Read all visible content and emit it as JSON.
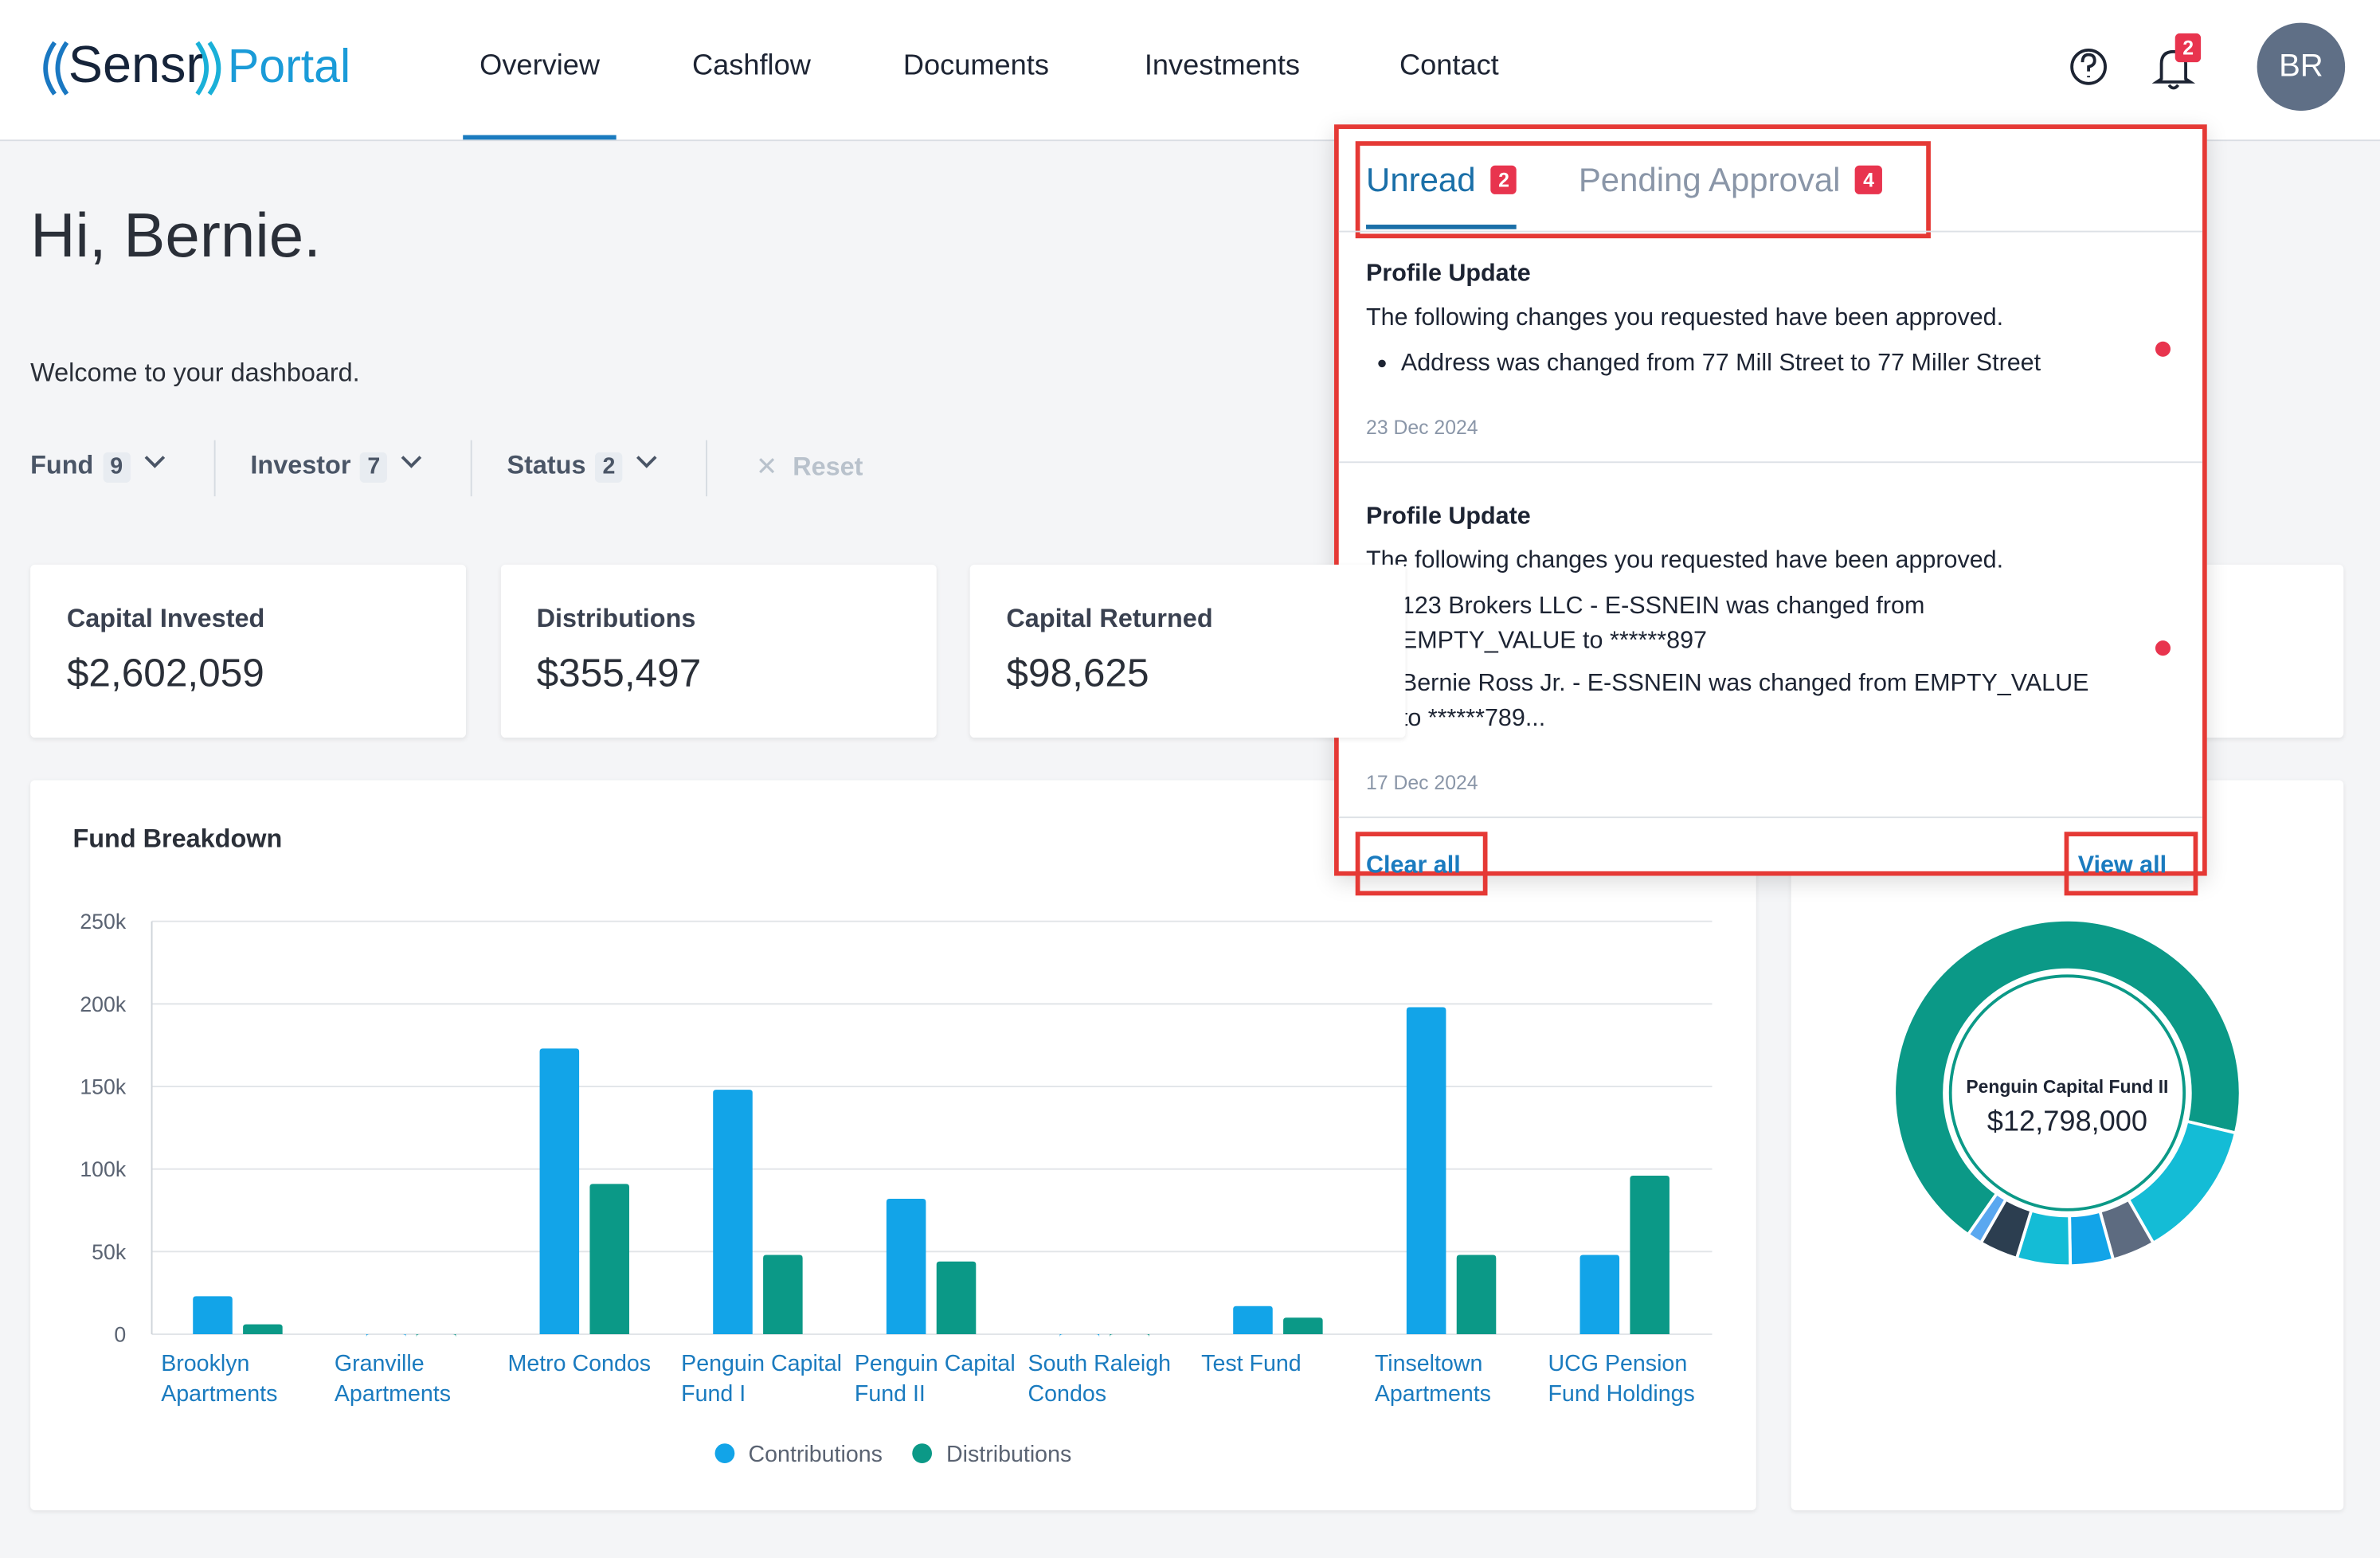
{
  "header": {
    "logo": "Sensr",
    "logo_suffix": "Portal",
    "nav": [
      "Overview",
      "Cashflow",
      "Documents",
      "Investments",
      "Contact"
    ],
    "active_nav": 0,
    "notification_count": 2,
    "avatar": "BR"
  },
  "greeting": "Hi, Bernie.",
  "welcome": "Welcome to your dashboard.",
  "filters": [
    {
      "label": "Fund",
      "count": 9
    },
    {
      "label": "Investor",
      "count": 7
    },
    {
      "label": "Status",
      "count": 2
    }
  ],
  "reset": "Reset",
  "cards": [
    {
      "label": "Capital Invested",
      "value": "$2,602,059"
    },
    {
      "label": "Distributions",
      "value": "$355,497"
    },
    {
      "label": "Capital Returned",
      "value": "$98,625"
    }
  ],
  "chart_data": {
    "type": "bar",
    "title": "Fund Breakdown",
    "categories": [
      "Brooklyn Apartments",
      "Granville Apartments",
      "Metro Condos",
      "Penguin Capital Fund I",
      "Penguin Capital Fund II",
      "South Raleigh Condos",
      "Test Fund",
      "Tinseltown Apartments",
      "UCG Pension Fund Holdings"
    ],
    "series": [
      {
        "name": "Contributions",
        "color": "#12a4e8",
        "values": [
          23000,
          0,
          173000,
          148000,
          82000,
          0,
          17000,
          198000,
          48000
        ]
      },
      {
        "name": "Distributions",
        "color": "#0b9987",
        "values": [
          6000,
          0,
          91000,
          48000,
          44000,
          0,
          10000,
          48000,
          96000
        ]
      }
    ],
    "ylim": [
      0,
      250000
    ],
    "yticks": [
      0,
      {
        "value": 50000,
        "label": "50k"
      },
      {
        "value": 100000,
        "label": "100k"
      },
      {
        "value": 150000,
        "label": "150k"
      },
      {
        "value": 200000,
        "label": "200k"
      },
      {
        "value": 250000,
        "label": "250k"
      }
    ],
    "grid": true,
    "legend": "bottom"
  },
  "fund_donut": {
    "type": "pie",
    "center_label": "Penguin Capital Fund II",
    "center_value": "$12,798,000",
    "segments": [
      {
        "color": "#0b9987",
        "value": 69
      },
      {
        "color": "#14bcd6",
        "value": 13
      },
      {
        "color": "#5d6b80",
        "value": 4
      },
      {
        "color": "#12a4e8",
        "value": 4
      },
      {
        "color": "#14bcd6",
        "value": 5
      },
      {
        "color": "#2c3e50",
        "value": 3.6
      },
      {
        "color": "#5aa8f0",
        "value": 1.4
      }
    ]
  },
  "notifications": {
    "tabs": [
      {
        "label": "Unread",
        "count": 2
      },
      {
        "label": "Pending Approval",
        "count": 4
      }
    ],
    "active_tab": 0,
    "items": [
      {
        "title": "Profile Update",
        "text": "The following changes you requested have been approved.",
        "bullets": [
          "Address was changed from 77 Mill Street to 77 Miller Street"
        ],
        "date": "23 Dec 2024",
        "unread": true
      },
      {
        "title": "Profile Update",
        "text": "The following changes you requested have been approved.",
        "bullets": [
          "123 Brokers LLC - E-SSNEIN was changed from EMPTY_VALUE to ******897",
          "Bernie Ross Jr. - E-SSNEIN was changed from EMPTY_VALUE to ******789..."
        ],
        "date": "17 Dec 2024",
        "unread": true
      }
    ],
    "clear_all": "Clear all",
    "view_all": "View all"
  }
}
